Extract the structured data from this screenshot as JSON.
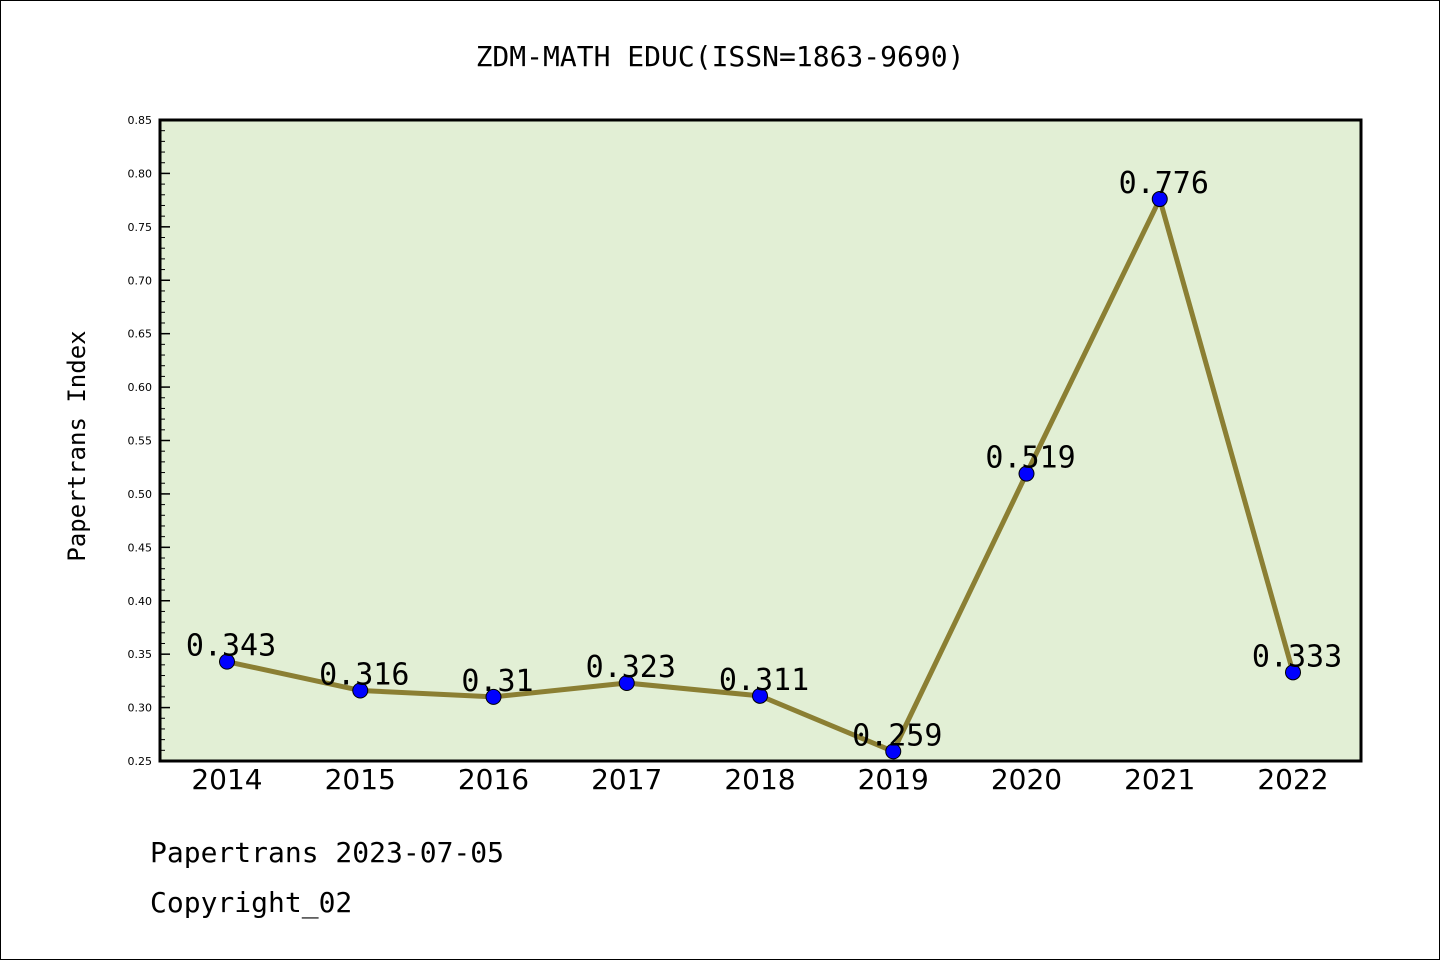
{
  "chart_data": {
    "type": "line",
    "title": "ZDM-MATH EDUC(ISSN=1863-9690)",
    "xlabel": "",
    "ylabel": "Papertrans Index",
    "categories": [
      "2014",
      "2015",
      "2016",
      "2017",
      "2018",
      "2019",
      "2020",
      "2021",
      "2022"
    ],
    "values": [
      0.343,
      0.316,
      0.31,
      0.323,
      0.311,
      0.259,
      0.519,
      0.776,
      0.333
    ],
    "data_labels": [
      "0.343",
      "0.316",
      "0.31",
      "0.323",
      "0.311",
      "0.259",
      "0.519",
      "0.776",
      "0.333"
    ],
    "ylim": [
      0.25,
      0.85
    ],
    "yticks": [
      "0.25",
      "0.30",
      "0.35",
      "0.40",
      "0.45",
      "0.50",
      "0.55",
      "0.60",
      "0.65",
      "0.70",
      "0.75",
      "0.80",
      "0.85"
    ],
    "grid": false,
    "legend": "none",
    "colors": {
      "plot_background": "#e2efd5",
      "line": "#8b7f33",
      "marker": "#0000ff"
    }
  },
  "footer": {
    "date_line": "Papertrans 2023-07-05",
    "copyright_line": "Copyright_02"
  }
}
